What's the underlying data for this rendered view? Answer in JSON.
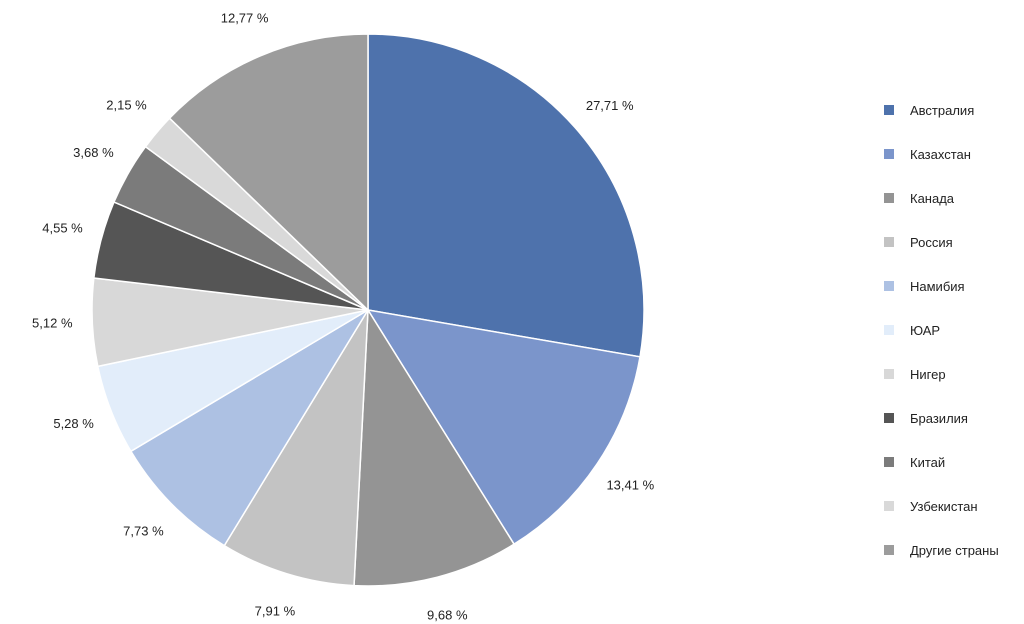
{
  "chart_data": {
    "type": "pie",
    "title": "",
    "slices": [
      {
        "label": "Австралия",
        "value": 27.71,
        "value_label": "27,71 %",
        "color": "#4e72ac"
      },
      {
        "label": "Казахстан",
        "value": 13.41,
        "value_label": "13,41 %",
        "color": "#7b95cb"
      },
      {
        "label": "Канада",
        "value": 9.68,
        "value_label": "9,68 %",
        "color": "#949494"
      },
      {
        "label": "Россия",
        "value": 7.91,
        "value_label": "7,91 %",
        "color": "#c3c3c3"
      },
      {
        "label": "Намибия",
        "value": 7.73,
        "value_label": "7,73 %",
        "color": "#adc1e3"
      },
      {
        "label": "ЮАР",
        "value": 5.28,
        "value_label": "5,28 %",
        "color": "#e2edfa"
      },
      {
        "label": "Нигер",
        "value": 5.12,
        "value_label": "5,12 %",
        "color": "#d8d8d8"
      },
      {
        "label": "Бразилия",
        "value": 4.55,
        "value_label": "4,55 %",
        "color": "#555555"
      },
      {
        "label": "Китай",
        "value": 3.68,
        "value_label": "3,68 %",
        "color": "#7b7b7b"
      },
      {
        "label": "Узбекистан",
        "value": 2.15,
        "value_label": "2,15 %",
        "color": "#d9d9d9"
      },
      {
        "label": "Другие страны",
        "value": 12.77,
        "value_label": "12,77 %",
        "color": "#9c9c9c"
      }
    ],
    "legend_position": "right",
    "start_angle": "12 o'clock",
    "direction": "clockwise"
  }
}
